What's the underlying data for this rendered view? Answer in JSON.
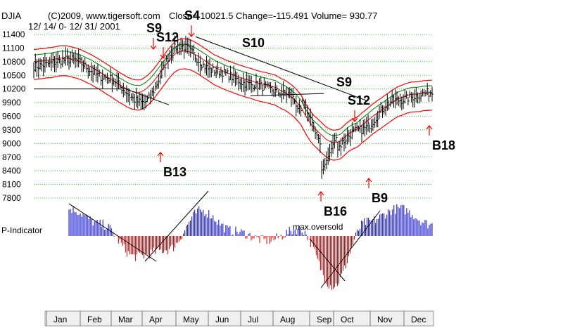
{
  "header": {
    "symbol": "DJIA",
    "copyright": "(C)2009, www.tigersoft.com",
    "stats": "Close= 10021.5   Change=-115.491  Volume= 930.77",
    "date_range": "12/ 14/ 0- 12/ 31/ 2001"
  },
  "colors": {
    "price_bars": "#000000",
    "upper_band": "#ff0000",
    "lower_band": "#ff0000",
    "green_band": "#008000",
    "gridlines": "#00c000",
    "indicator_positive": "#0000cc",
    "indicator_negative": "#cc0000",
    "signal_arrow": "#ff0000",
    "month_box": "#f0f0f0"
  },
  "chart_data": [
    {
      "type": "line",
      "title": "DJIA",
      "ylim": [
        7800,
        11400
      ],
      "y_ticks": [
        "11400",
        "11100",
        "10800",
        "10500",
        "10200",
        "9900",
        "9600",
        "9300",
        "9000",
        "8700",
        "8400",
        "8100",
        "7800"
      ],
      "grid": "horizontal",
      "x": [
        "Jan",
        "Feb",
        "Mar",
        "Apr",
        "May",
        "Jun",
        "Jul",
        "Aug",
        "Sep",
        "Oct",
        "Nov",
        "Dec"
      ],
      "series": [
        {
          "values": [
            10700,
            10850,
            10450,
            9900,
            11150,
            10600,
            10300,
            10100,
            8700,
            9300,
            9950,
            10120
          ]
        }
      ],
      "signals": [
        {
          "label": "S9",
          "month": "Apr",
          "arrow": "down"
        },
        {
          "label": "S12",
          "month": "Apr",
          "arrow": "down"
        },
        {
          "label": "S4",
          "month": "May",
          "arrow": "down"
        },
        {
          "label": "S10",
          "month": "Jun",
          "arrow": "none"
        },
        {
          "label": "S9",
          "month": "Oct",
          "arrow": "none"
        },
        {
          "label": "S12",
          "month": "Oct",
          "arrow": "down"
        },
        {
          "label": "B13",
          "month": "Apr",
          "arrow": "up"
        },
        {
          "label": "B16",
          "month": "Sep",
          "arrow": "up"
        },
        {
          "label": "B9",
          "month": "Oct",
          "arrow": "up"
        },
        {
          "label": "B18",
          "month": "Dec",
          "arrow": "up"
        }
      ]
    },
    {
      "type": "bar",
      "title": "P-Indicator",
      "annotation": "max.oversold",
      "x": [
        "Jan",
        "Feb",
        "Mar",
        "Apr",
        "May",
        "Jun",
        "Jul",
        "Aug",
        "Sep",
        "Oct",
        "Nov",
        "Dec"
      ],
      "values": [
        60,
        25,
        -45,
        -30,
        55,
        10,
        -10,
        15,
        -110,
        30,
        60,
        25
      ]
    }
  ],
  "months": [
    "Jan",
    "Feb",
    "Mar",
    "Apr",
    "May",
    "Jun",
    "Jul",
    "Aug",
    "Sep",
    "Oct",
    "Nov",
    "Dec"
  ]
}
